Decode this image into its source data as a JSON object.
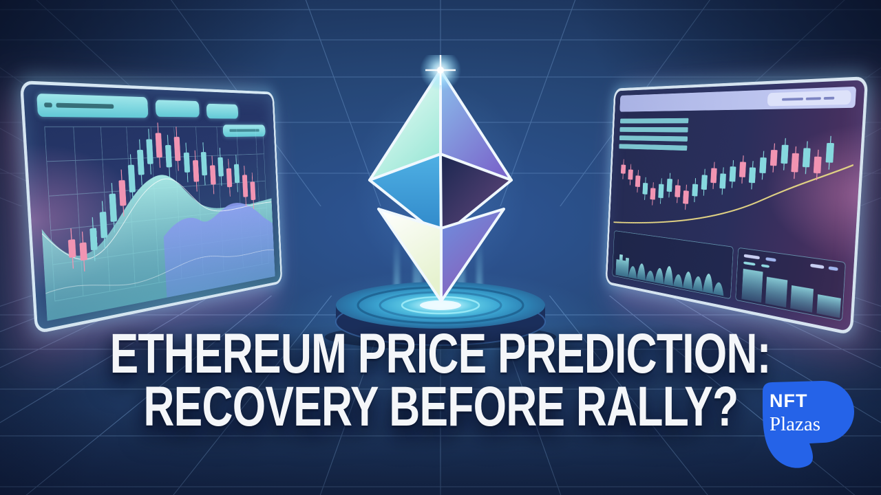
{
  "headline": {
    "line1": "ETHEREUM PRICE PREDICTION:",
    "line2": "RECOVERY BEFORE RALLY?"
  },
  "brand": {
    "nft": "NFT",
    "plazas": "Plazas",
    "logo_color": "#2563e8"
  },
  "palette": {
    "background_navy": "#16284e",
    "grid_line": "#89b7ea",
    "screen_glow_cyan": "#8fe2ff",
    "screen_glow_pink": "#f08ac8",
    "candle_teal": "#86d8de",
    "candle_pink": "#f194b2",
    "trend_line_yellow": "#e3d484",
    "eth_mint": "#d9f6ec",
    "eth_purple": "#7e6cc9",
    "eth_cyan": "#41a3dc",
    "eth_dark": "#232c55",
    "pedestal_ring": "#6fd4ee",
    "headline_white": "#f4f6f9"
  },
  "screens": {
    "left": {
      "candles": [
        [
          10,
          66,
          74,
          "d"
        ],
        [
          14,
          68,
          76,
          "d"
        ],
        [
          18,
          62,
          72,
          "u"
        ],
        [
          22,
          55,
          67,
          "u"
        ],
        [
          26,
          47,
          60,
          "u"
        ],
        [
          30,
          41,
          53,
          "d"
        ],
        [
          34,
          34,
          47,
          "u"
        ],
        [
          38,
          27,
          39,
          "u"
        ],
        [
          42,
          22,
          34,
          "u"
        ],
        [
          46,
          19,
          31,
          "d"
        ],
        [
          50,
          25,
          36,
          "u"
        ],
        [
          54,
          21,
          33,
          "d"
        ],
        [
          58,
          29,
          39,
          "u"
        ],
        [
          62,
          33,
          44,
          "d"
        ],
        [
          66,
          29,
          41,
          "u"
        ],
        [
          70,
          36,
          46,
          "d"
        ],
        [
          74,
          32,
          42,
          "u"
        ],
        [
          78,
          38,
          48,
          "d"
        ],
        [
          82,
          36,
          46,
          "u"
        ],
        [
          86,
          42,
          54,
          "d"
        ],
        [
          90,
          46,
          56,
          "d"
        ]
      ]
    },
    "right": {
      "candles": [
        [
          4,
          44,
          52,
          "d"
        ],
        [
          8,
          48,
          57,
          "d"
        ],
        [
          12,
          53,
          63,
          "d"
        ],
        [
          16,
          59,
          69,
          "u"
        ],
        [
          20,
          63,
          73,
          "d"
        ],
        [
          24,
          59,
          71,
          "u"
        ],
        [
          28,
          54,
          65,
          "u"
        ],
        [
          32,
          59,
          69,
          "d"
        ],
        [
          36,
          63,
          74,
          "d"
        ],
        [
          40,
          57,
          67,
          "u"
        ],
        [
          44,
          49,
          61,
          "u"
        ],
        [
          48,
          43,
          55,
          "d"
        ],
        [
          52,
          47,
          59,
          "u"
        ],
        [
          56,
          41,
          53,
          "u"
        ],
        [
          60,
          37,
          49,
          "d"
        ],
        [
          64,
          41,
          53,
          "u"
        ],
        [
          68,
          33,
          45,
          "u"
        ],
        [
          72,
          27,
          39,
          "d"
        ],
        [
          76,
          23,
          37,
          "u"
        ],
        [
          80,
          29,
          43,
          "d"
        ],
        [
          84,
          25,
          39,
          "u"
        ],
        [
          88,
          31,
          43,
          "d"
        ],
        [
          92,
          21,
          35,
          "u"
        ]
      ]
    }
  }
}
